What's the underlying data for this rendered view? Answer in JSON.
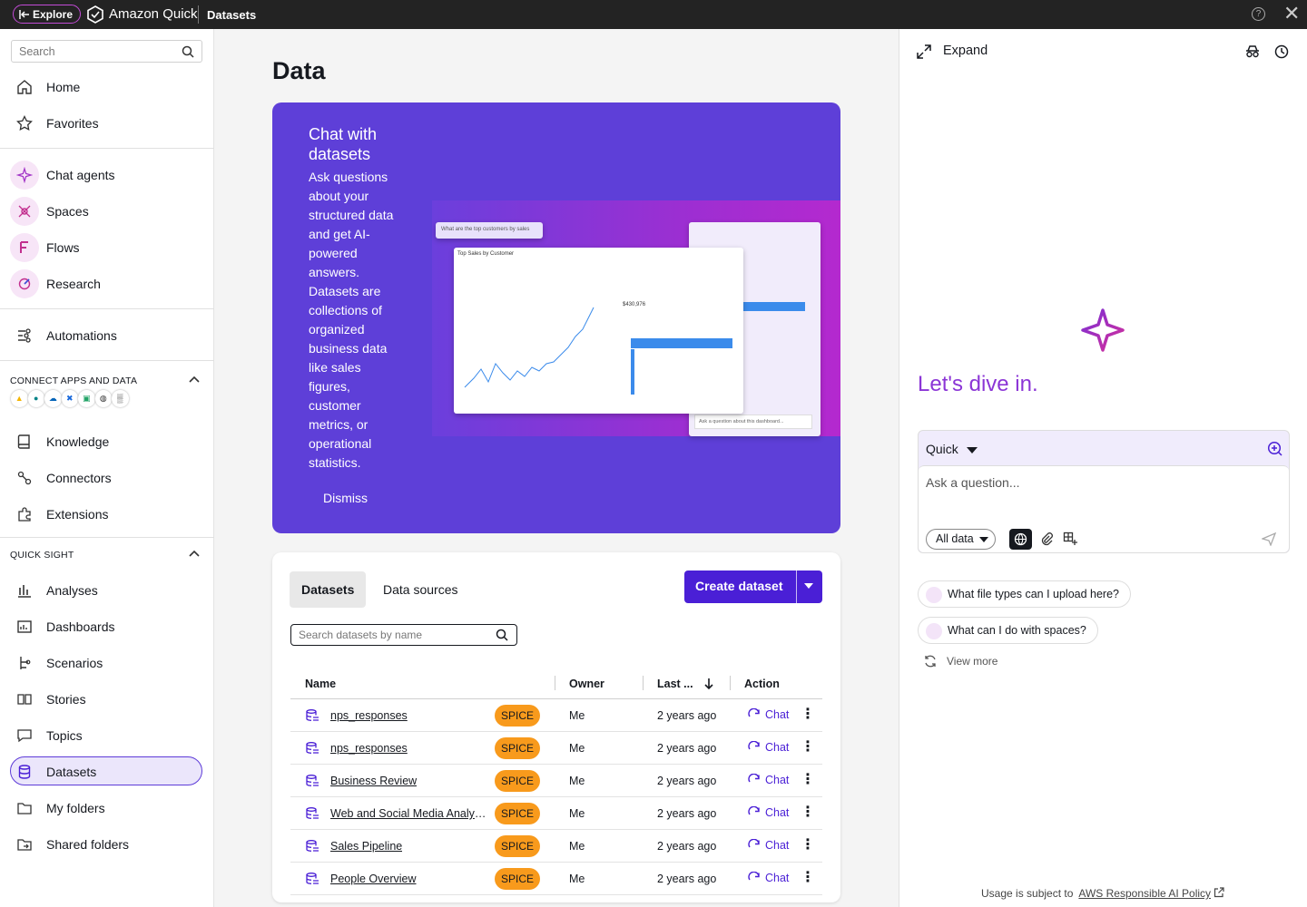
{
  "topbar": {
    "explore_label": "Explore",
    "brand": "Amazon Quick",
    "breadcrumb": "Datasets"
  },
  "sidebar": {
    "search_placeholder": "Search",
    "items": [
      {
        "label": "Home",
        "icon": "home-icon"
      },
      {
        "label": "Favorites",
        "icon": "star-icon"
      },
      {
        "label": "Chat agents",
        "icon": "sparkle-icon"
      },
      {
        "label": "Spaces",
        "icon": "spaces-icon"
      },
      {
        "label": "Flows",
        "icon": "flows-icon"
      },
      {
        "label": "Research",
        "icon": "research-icon"
      },
      {
        "label": "Automations",
        "icon": "automations-icon"
      },
      {
        "label": "Knowledge",
        "icon": "book-icon"
      },
      {
        "label": "Connectors",
        "icon": "connectors-icon"
      },
      {
        "label": "Extensions",
        "icon": "extensions-icon"
      },
      {
        "label": "Analyses",
        "icon": "analyses-icon"
      },
      {
        "label": "Dashboards",
        "icon": "dashboards-icon"
      },
      {
        "label": "Scenarios",
        "icon": "scenarios-icon"
      },
      {
        "label": "Stories",
        "icon": "stories-icon"
      },
      {
        "label": "Topics",
        "icon": "topics-icon"
      },
      {
        "label": "Datasets",
        "icon": "database-icon"
      },
      {
        "label": "My folders",
        "icon": "folder-icon"
      },
      {
        "label": "Shared folders",
        "icon": "shared-folder-icon"
      }
    ],
    "section_connect": "CONNECT APPS AND DATA",
    "section_quicksight": "QUICK SIGHT"
  },
  "main": {
    "title": "Data",
    "banner": {
      "title": "Chat with datasets",
      "description": "Ask questions about your structured data and get AI-powered answers. Datasets are collections of organized business data like sales figures, customer metrics, or operational statistics.",
      "dismiss": "Dismiss",
      "art_prompt": "What are the top customers by sales",
      "art_chart_title": "Top Sales by Customer",
      "art_kpi": "$430,976",
      "art_ask": "Ask a question about this dashboard..."
    },
    "tabs": [
      "Datasets",
      "Data sources"
    ],
    "create_button": "Create dataset",
    "search_placeholder": "Search datasets by name",
    "columns": [
      "Name",
      "Owner",
      "Last ...",
      "Action"
    ],
    "rows": [
      {
        "name": "nps_responses",
        "badge": "SPICE",
        "owner": "Me",
        "updated": "2 years ago",
        "action": "Chat"
      },
      {
        "name": "nps_responses",
        "badge": "SPICE",
        "owner": "Me",
        "updated": "2 years ago",
        "action": "Chat"
      },
      {
        "name": "Business Review",
        "badge": "SPICE",
        "owner": "Me",
        "updated": "2 years ago",
        "action": "Chat"
      },
      {
        "name": "Web and Social Media Analytics",
        "badge": "SPICE",
        "owner": "Me",
        "updated": "2 years ago",
        "action": "Chat"
      },
      {
        "name": "Sales Pipeline",
        "badge": "SPICE",
        "owner": "Me",
        "updated": "2 years ago",
        "action": "Chat"
      },
      {
        "name": "People Overview",
        "badge": "SPICE",
        "owner": "Me",
        "updated": "2 years ago",
        "action": "Chat"
      }
    ]
  },
  "panel": {
    "expand": "Expand",
    "greeting": "Let's dive in.",
    "agent_select": "Quick",
    "input_placeholder": "Ask a question...",
    "scope": "All data",
    "suggestions": [
      "What file types can I upload here?",
      "What can I do with spaces?"
    ],
    "view_more": "View more",
    "footer_text": "Usage is subject to",
    "footer_link": "AWS Responsible AI Policy"
  },
  "colors": {
    "accent": "#4a1fd6",
    "banner": "#5e3fd8",
    "spice": "#f89a1c",
    "greeting": "#8b35d6"
  }
}
